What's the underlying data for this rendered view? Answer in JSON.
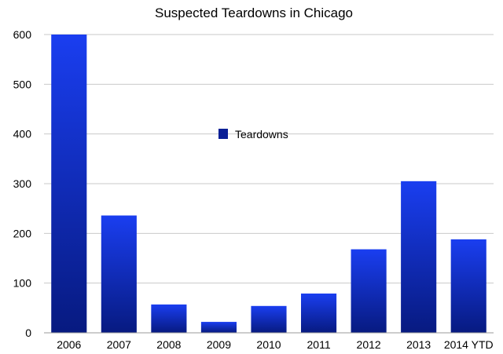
{
  "chart_data": {
    "type": "bar",
    "title": "Suspected Teardowns in Chicago",
    "xlabel": "",
    "ylabel": "",
    "categories": [
      "2006",
      "2007",
      "2008",
      "2009",
      "2010",
      "2011",
      "2012",
      "2013",
      "2014 YTD"
    ],
    "series": [
      {
        "name": "Teardowns",
        "values": [
          600,
          236,
          57,
          22,
          54,
          79,
          168,
          305,
          188
        ]
      }
    ],
    "ylim": [
      0,
      600
    ],
    "yticks": [
      0,
      100,
      200,
      300,
      400,
      500,
      600
    ],
    "grid": true,
    "legend_placement": "center",
    "colors": {
      "bar_light": "#1a3ef0",
      "bar_dark": "#071a80",
      "legend_swatch": "#0a1f96"
    }
  }
}
